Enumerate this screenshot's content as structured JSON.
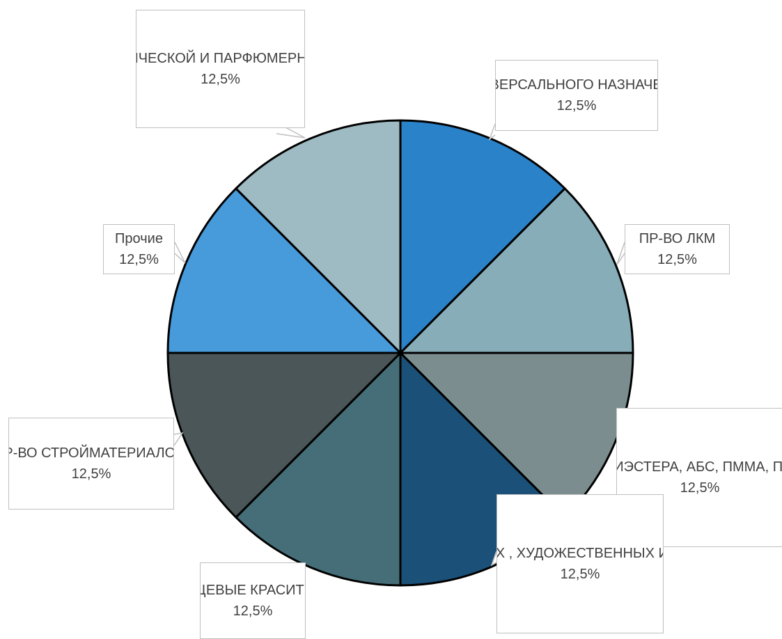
{
  "chart_data": {
    "type": "pie",
    "slices": [
      {
        "label": "УНИВЕРСАЛЬНОГО НАЗНАЧЕНИЯ",
        "value": 12.5,
        "percent_label": "12,5%",
        "color": "#2a82c9"
      },
      {
        "label": "ПР-ВО ЛКМ",
        "value": 12.5,
        "percent_label": "12,5%",
        "color": "#86adb8"
      },
      {
        "label": "ПР-ВО ПОЛИМЕРОВ (ПВХ, ПОЛИЭСТЕРА, АБС, ПММА, ПВХ, ПЭТ, ПК, ПА, ПУ, К, РЕЗИНА)",
        "value": 12.5,
        "percent_label": "12,5%",
        "color": "#7b8d8e"
      },
      {
        "label": "ПР-ВО ПОЛИГРАФИЧЕСКИХ, ХУДОЖЕСТВЕННЫХ И ДЕКОРАТИВНЫХ КРАСОК",
        "value": 12.5,
        "percent_label": "12,5%",
        "color": "#1b5079"
      },
      {
        "label": "ПИЩЕВЫЕ КРАСИТЕЛИ",
        "value": 12.5,
        "percent_label": "12,5%",
        "color": "#456e78"
      },
      {
        "label": "ПР-ВО СТРОЙМАТЕРИАЛОВ",
        "value": 12.5,
        "percent_label": "12,5%",
        "color": "#4b5658"
      },
      {
        "label": "Прочие",
        "value": 12.5,
        "percent_label": "12,5%",
        "color": "#479bdb"
      },
      {
        "label": "ПР-ВО КОСМЕТИЧЕСКОЙ И ПАРФЮМЕРНОЙ ПРОДУКЦИИ",
        "value": 12.5,
        "percent_label": "12,5%",
        "color": "#9ebac2"
      }
    ],
    "start_angle": "12 o'clock",
    "direction": "clockwise",
    "legend": "none"
  },
  "labels": [
    {
      "text": "УНИВЕРСАЛЬНОГО\nНАЗНАЧЕНИЯ"
    },
    {
      "text": "ПР-ВО ЛКМ"
    },
    {
      "text": "ПР-ВО ПОЛИМЕРОВ\n(ПВХ, ПОЛИЭСТЕРА,\nАБС, ПММА, ПВХ,\nПЭТ, ПК, ПА, ПУ,\nК, РЕЗИНА)"
    },
    {
      "text": "ПР-ВО\nПОЛИГРАФИЧЕСКИХ\n, ХУДОЖЕСТВЕННЫХ\nИ ДЕКОРАТИВНЫХ\nКРАСОК"
    },
    {
      "text": "ПИЩЕВЫЕ\nКРАСИТЕЛИ"
    },
    {
      "text": "ПР-ВО\nСТРОЙМАТЕРИАЛО\nВ"
    },
    {
      "text": "Прочие"
    },
    {
      "text": "ПР-ВО\nКОСМЕТИЧЕСКОЙ И\nПАРФЮМЕРНОЙ\nПРОДУКЦИИ"
    }
  ]
}
